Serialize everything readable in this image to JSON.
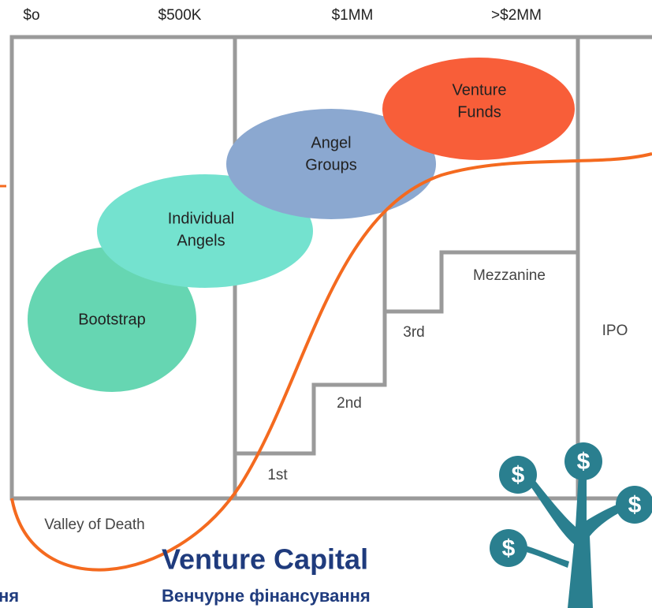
{
  "axis_labels": [
    "$o",
    "$500K",
    "$1MM",
    ">$2MM"
  ],
  "funding_sources": [
    [
      "Bootstrap"
    ],
    [
      "Individual",
      "Angels"
    ],
    [
      "Angel",
      "Groups"
    ],
    [
      "Venture",
      "Funds"
    ]
  ],
  "stages": [
    "1st",
    "2nd",
    "3rd",
    "Mezzanine",
    "IPO"
  ],
  "valley_label": "Valley of Death",
  "title": "Venture Capital",
  "subtitle": "Венчурне фінансування",
  "cropped_text": "ня"
}
